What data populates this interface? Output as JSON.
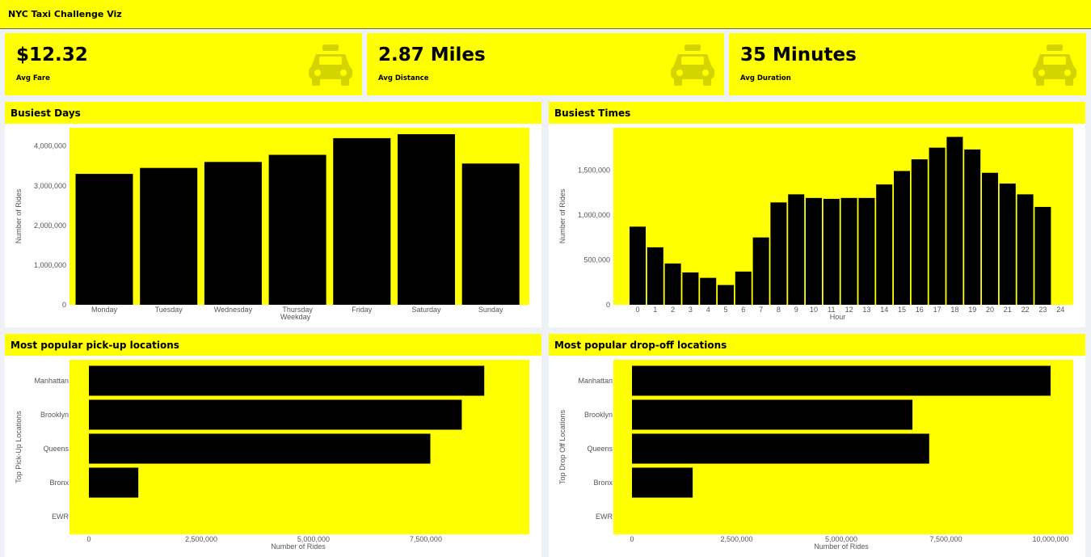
{
  "app": {
    "title": "NYC Taxi Challenge Viz"
  },
  "kpis": [
    {
      "value": "$12.32",
      "label": "Avg Fare",
      "icon": "taxi-icon"
    },
    {
      "value": "2.87 Miles",
      "label": "Avg Distance",
      "icon": "taxi-icon"
    },
    {
      "value": "35 Minutes",
      "label": "Avg Duration",
      "icon": "taxi-icon"
    }
  ],
  "panels": {
    "days": "Busiest Days",
    "times": "Busiest Times",
    "pickup": "Most popular pick-up locations",
    "dropoff": "Most popular drop-off locations"
  },
  "colors": {
    "accent": "#ffff00",
    "bar": "#000000",
    "icon": "#d4d400"
  },
  "chart_data": [
    {
      "type": "bar",
      "title": "Busiest Days",
      "xlabel": "Weekday",
      "ylabel": "Number of Rides",
      "categories": [
        "Monday",
        "Tuesday",
        "Wednesday",
        "Thursday",
        "Friday",
        "Saturday",
        "Sunday"
      ],
      "values": [
        3300000,
        3450000,
        3600000,
        3780000,
        4200000,
        4300000,
        3560000
      ],
      "ylim": [
        0,
        4300000
      ],
      "yticks": [
        0,
        1000000,
        2000000,
        3000000,
        4000000
      ],
      "ytick_labels": [
        "0",
        "1,000,000",
        "2,000,000",
        "3,000,000",
        "4,000,000"
      ],
      "grid": false
    },
    {
      "type": "bar",
      "title": "Busiest Times",
      "xlabel": "Hour",
      "ylabel": "Number of Rides",
      "categories": [
        0,
        1,
        2,
        3,
        4,
        5,
        6,
        7,
        8,
        9,
        10,
        11,
        12,
        13,
        14,
        15,
        16,
        17,
        18,
        19,
        20,
        21,
        22,
        23
      ],
      "values": [
        870000,
        640000,
        460000,
        360000,
        300000,
        220000,
        370000,
        750000,
        1140000,
        1230000,
        1190000,
        1180000,
        1190000,
        1190000,
        1340000,
        1490000,
        1620000,
        1750000,
        1870000,
        1730000,
        1470000,
        1350000,
        1230000,
        1090000
      ],
      "xticks": [
        0,
        1,
        2,
        3,
        4,
        5,
        6,
        7,
        8,
        9,
        10,
        11,
        12,
        13,
        14,
        15,
        16,
        17,
        18,
        19,
        20,
        21,
        22,
        23,
        24
      ],
      "ylim": [
        0,
        1900000
      ],
      "yticks": [
        0,
        500000,
        1000000,
        1500000
      ],
      "ytick_labels": [
        "0",
        "500,000",
        "1,000,000",
        "1,500,000"
      ],
      "grid": false
    },
    {
      "type": "bar",
      "orientation": "horizontal",
      "title": "Most popular pick-up locations",
      "xlabel": "Number of Rides",
      "ylabel": "Top Pick-Up Locations",
      "categories": [
        "Manhattan",
        "Brooklyn",
        "Queens",
        "Bronx",
        "EWR"
      ],
      "values": [
        8800000,
        8300000,
        7600000,
        1100000,
        0
      ],
      "xlim": [
        0,
        9300000
      ],
      "xticks": [
        0,
        2500000,
        5000000,
        7500000
      ],
      "xtick_labels": [
        "0",
        "2,500,000",
        "5,000,000",
        "7,500,000"
      ],
      "grid": false
    },
    {
      "type": "bar",
      "orientation": "horizontal",
      "title": "Most popular drop-off locations",
      "xlabel": "Number of Rides",
      "ylabel": "Top Drop Off Locations",
      "categories": [
        "Manhattan",
        "Brooklyn",
        "Queens",
        "Bronx",
        "EWR"
      ],
      "values": [
        10000000,
        6700000,
        7100000,
        1450000,
        0
      ],
      "xlim": [
        0,
        10000000
      ],
      "xticks": [
        0,
        2500000,
        5000000,
        7500000,
        10000000
      ],
      "xtick_labels": [
        "0",
        "2,500,000",
        "5,000,000",
        "7,500,000",
        "10,000,000"
      ],
      "grid": false
    }
  ]
}
